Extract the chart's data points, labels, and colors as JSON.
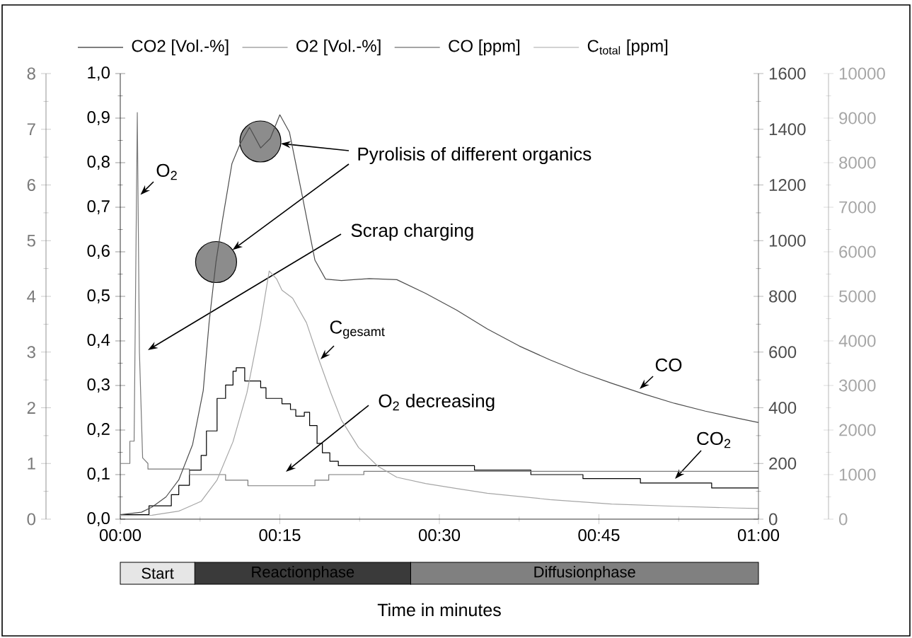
{
  "chart_data": [
    {
      "type": "line",
      "xlabel": "Time in minutes",
      "legend": "top",
      "xlim": [
        0,
        60
      ],
      "xticks": [
        {
          "value": 0,
          "label": "00:00"
        },
        {
          "value": 7.5,
          "label": null
        },
        {
          "value": 15,
          "label": "00:15"
        },
        {
          "value": 22.5,
          "label": null
        },
        {
          "value": 30,
          "label": "00:30"
        },
        {
          "value": 37.5,
          "label": null
        },
        {
          "value": 45,
          "label": "00:45"
        },
        {
          "value": 52.5,
          "label": null
        },
        {
          "value": 60,
          "label": "01:00"
        }
      ],
      "ylim": [
        0,
        1
      ],
      "yticks": [
        {
          "value": 0,
          "label": "0,0"
        },
        {
          "value": 0.05,
          "label": null
        },
        {
          "value": 0.1,
          "label": "0,1"
        },
        {
          "value": 0.15,
          "label": null
        },
        {
          "value": 0.2,
          "label": "0,2"
        },
        {
          "value": 0.25,
          "label": null
        },
        {
          "value": 0.3,
          "label": "0,3"
        },
        {
          "value": 0.35,
          "label": null
        },
        {
          "value": 0.4,
          "label": "0,4"
        },
        {
          "value": 0.45,
          "label": null
        },
        {
          "value": 0.5,
          "label": "0,5"
        },
        {
          "value": 0.55,
          "label": null
        },
        {
          "value": 0.6,
          "label": "0,6"
        },
        {
          "value": 0.65,
          "label": null
        },
        {
          "value": 0.7,
          "label": "0,7"
        },
        {
          "value": 0.75,
          "label": null
        },
        {
          "value": 0.8,
          "label": "0,8"
        },
        {
          "value": 0.85,
          "label": null
        },
        {
          "value": 0.9,
          "label": "0,9"
        },
        {
          "value": 0.95,
          "label": null
        },
        {
          "value": 1,
          "label": "1,0"
        }
      ],
      "y2lim": [
        0,
        8
      ],
      "y2ticks": [
        0,
        {
          "value": 0.5,
          "label": null
        },
        1,
        {
          "value": 1.5,
          "label": null
        },
        2,
        {
          "value": 2.5,
          "label": null
        },
        3,
        {
          "value": 3.5,
          "label": null
        },
        4,
        {
          "value": 4.5,
          "label": null
        },
        5,
        {
          "value": 5.5,
          "label": null
        },
        6,
        {
          "value": 6.5,
          "label": null
        },
        7,
        {
          "value": 7.5,
          "label": null
        },
        8
      ],
      "y3lim": [
        0,
        1600
      ],
      "y3ticks": [
        0,
        {
          "value": 100,
          "label": null
        },
        200,
        {
          "value": 300,
          "label": null
        },
        400,
        {
          "value": 500,
          "label": null
        },
        600,
        {
          "value": 700,
          "label": null
        },
        800,
        {
          "value": 900,
          "label": null
        },
        1000,
        {
          "value": 1100,
          "label": null
        },
        1200,
        {
          "value": 1300,
          "label": null
        },
        1400,
        {
          "value": 1500,
          "label": null
        },
        1600
      ],
      "series": [
        {
          "name": "CO2 [Vol.-%]",
          "color": "#000000",
          "type": "step",
          "x": [
            0,
            2.7,
            4.8,
            5.5,
            6.5,
            7.6,
            8.1,
            9.1,
            9.9,
            10.6,
            10.9,
            11.7,
            13.2,
            13.7,
            15.2,
            16.0,
            16.5,
            17.3,
            17.8,
            18.5,
            19.0,
            19.7,
            20.5,
            33.3,
            38.6,
            43.5,
            48.9,
            55.6,
            60
          ],
          "values": [
            0.01,
            0.03,
            0.055,
            0.076,
            0.11,
            0.143,
            0.198,
            0.271,
            0.301,
            0.332,
            0.34,
            0.31,
            0.295,
            0.271,
            0.259,
            0.246,
            0.231,
            0.24,
            0.21,
            0.17,
            0.149,
            0.13,
            0.12,
            0.11,
            0.1,
            0.091,
            0.081,
            0.07,
            0.07
          ]
        },
        {
          "name": "O2 [Vol.-%]",
          "color": "#7a7a7a",
          "axis": "y2",
          "x": [
            0,
            0.9,
            0.9,
            1.3,
            1.6,
            1.8,
            2.1,
            2.6,
            2.6,
            6.5,
            6.5,
            9.9,
            9.9,
            12.0,
            12.0,
            18.3,
            18.3,
            19.6,
            19.6,
            22.9,
            22.9,
            60
          ],
          "values": [
            1.0,
            1.0,
            1.4,
            1.4,
            7.3,
            3.0,
            1.1,
            1.0,
            0.9,
            0.9,
            0.8,
            0.8,
            0.7,
            0.7,
            0.6,
            0.6,
            0.7,
            0.7,
            0.8,
            0.8,
            0.86,
            0.86
          ]
        },
        {
          "name": "CO [ppm]",
          "color": "#4d4d4d",
          "axis": "y3",
          "x": [
            0,
            2,
            3,
            4.3,
            5.5,
            6.8,
            7.8,
            8.35,
            9,
            9.6,
            10.5,
            11.25,
            12.15,
            13.2,
            14.1,
            15,
            15.9,
            17.1,
            18.3,
            19.3,
            20.8,
            23.4,
            26,
            28.7,
            31.6,
            34.5,
            37.5,
            40.4,
            43.3,
            46.2,
            49.2,
            52.1,
            55,
            58,
            60
          ],
          "values": [
            16,
            25,
            44,
            80,
            141,
            268,
            462,
            706,
            925,
            1072,
            1277,
            1346,
            1407,
            1333,
            1367,
            1452,
            1390,
            1163,
            930,
            862,
            857,
            864,
            860,
            811,
            751,
            683,
            622,
            572,
            527,
            488,
            450,
            416,
            388,
            363,
            347
          ]
        }
      ],
      "annotations": [
        {
          "text": "O$_{2}$",
          "x": 1.9,
          "y": 0.728
        },
        "Pyrolisis of different organics",
        "Scrap charging",
        "C$_{gesamt}$",
        "O$_{2}$ decreasing",
        "CO",
        "CO$_{2}$"
      ]
    },
    {
      "type": "line",
      "legend": "top",
      "tick_labels": "y",
      "xlim": [
        0,
        60
      ],
      "ylim": [
        0,
        10000
      ],
      "yticks": [
        0,
        {
          "value": 500,
          "label": null
        },
        1000,
        {
          "value": 1500,
          "label": null
        },
        2000,
        {
          "value": 2500,
          "label": null
        },
        3000,
        {
          "value": 3500,
          "label": null
        },
        4000,
        {
          "value": 4500,
          "label": null
        },
        5000,
        {
          "value": 5500,
          "label": null
        },
        6000,
        {
          "value": 6500,
          "label": null
        },
        7000,
        {
          "value": 7500,
          "label": null
        },
        8000,
        {
          "value": 8500,
          "label": null
        },
        9000,
        {
          "value": 9500,
          "label": null
        },
        10000
      ],
      "series": [
        {
          "name": "C$_{total}$ [ppm]",
          "color": "#a6a6a6",
          "x": [
            0,
            3,
            5.5,
            7.6,
            9.1,
            10.6,
            11.9,
            13.2,
            14,
            14.7,
            15.2,
            16.2,
            17.5,
            18.7,
            19.8,
            20.8,
            22.4,
            24.2,
            26,
            28.7,
            31.6,
            34.5,
            40.4,
            46.2,
            52.1,
            58,
            60
          ],
          "values": [
            80,
            90,
            180,
            400,
            880,
            1740,
            2830,
            4410,
            5570,
            5390,
            5140,
            4960,
            4410,
            3560,
            2830,
            2220,
            1610,
            1190,
            940,
            800,
            690,
            580,
            440,
            340,
            290,
            250,
            240
          ]
        }
      ]
    },
    {
      "type": "bar",
      "orientation": "horizontal",
      "stacked": true,
      "tick_labels": false,
      "categories": [
        null
      ],
      "xlim": [
        0,
        60
      ],
      "series": [
        {
          "name": "Start",
          "color": "#e6e6e6",
          "values": [
            7
          ]
        },
        {
          "name": "Reactionphase",
          "color": "#3a3a3a",
          "values": [
            20.3
          ]
        },
        {
          "name": "Diffusionphase",
          "color": "#808080",
          "values": [
            32.7
          ]
        }
      ]
    }
  ]
}
